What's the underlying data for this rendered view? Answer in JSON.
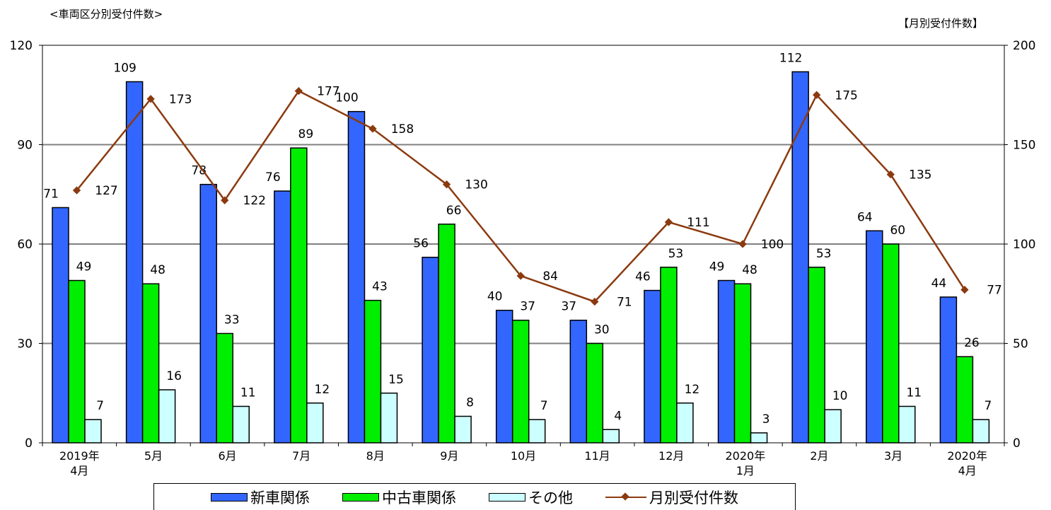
{
  "header": {
    "left_title": "<車両区分別受付件数>",
    "right_title": "【月別受付件数】"
  },
  "chart_data": {
    "type": "bar",
    "title": "<車両区分別受付件数>",
    "categories": [
      [
        "2019年",
        "4月"
      ],
      [
        "5月"
      ],
      [
        "6月"
      ],
      [
        "7月"
      ],
      [
        "8月"
      ],
      [
        "9月"
      ],
      [
        "10月"
      ],
      [
        "11月"
      ],
      [
        "12月"
      ],
      [
        "2020年",
        "1月"
      ],
      [
        "2月"
      ],
      [
        "3月"
      ],
      [
        "2020年",
        "4月"
      ]
    ],
    "series": [
      {
        "name": "新車関係",
        "type": "bar",
        "color": "#3366ff",
        "axis": "left",
        "values": [
          71,
          109,
          78,
          76,
          100,
          56,
          40,
          37,
          46,
          49,
          112,
          64,
          44
        ]
      },
      {
        "name": "中古車関係",
        "type": "bar",
        "color": "#00ee00",
        "axis": "left",
        "values": [
          49,
          48,
          33,
          89,
          43,
          66,
          37,
          30,
          53,
          48,
          53,
          60,
          26
        ]
      },
      {
        "name": "その他",
        "type": "bar",
        "color": "#ccffff",
        "axis": "left",
        "values": [
          7,
          16,
          11,
          12,
          15,
          8,
          7,
          4,
          12,
          3,
          10,
          11,
          7
        ]
      },
      {
        "name": "月別受付件数",
        "type": "line",
        "color": "#8b3a0f",
        "axis": "right",
        "values": [
          127,
          173,
          122,
          177,
          158,
          130,
          84,
          71,
          111,
          100,
          175,
          135,
          77
        ]
      }
    ],
    "y_left": {
      "min": 0,
      "max": 120,
      "ticks": [
        0,
        30,
        60,
        90,
        120
      ]
    },
    "y_right": {
      "min": 0,
      "max": 200,
      "ticks": [
        0,
        50,
        100,
        150,
        200
      ]
    },
    "grid": true,
    "legend": "bottom"
  }
}
